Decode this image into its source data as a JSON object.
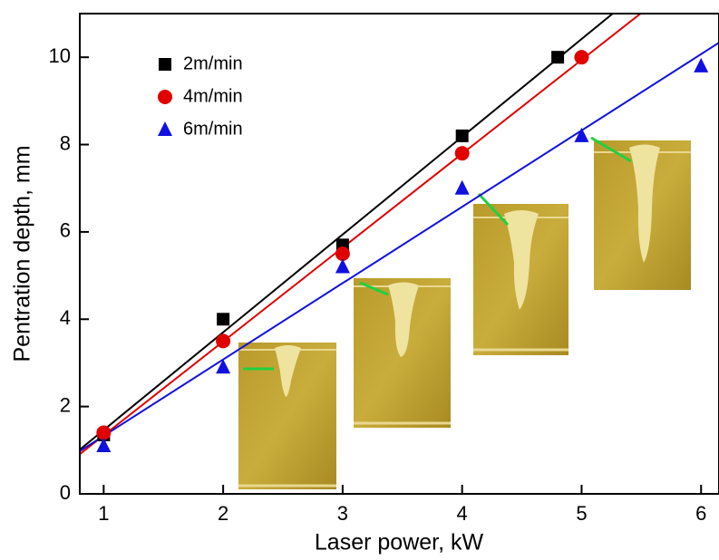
{
  "chart_data": {
    "type": "scatter",
    "x_label": "Laser power, kW",
    "y_label": "Pentration depth, mm",
    "xlim": [
      0.8,
      6.15
    ],
    "ylim": [
      0,
      11
    ],
    "xticks": [
      1,
      2,
      3,
      4,
      5,
      6
    ],
    "yticks": [
      0,
      2,
      4,
      6,
      8,
      10
    ],
    "fit_lines": true,
    "legend": "upper left",
    "series": [
      {
        "name": "2m/min",
        "color": "#000000",
        "marker": "square",
        "x": [
          1,
          2,
          3,
          4,
          4.8
        ],
        "values": [
          1.35,
          4.0,
          5.7,
          8.2,
          10.0
        ]
      },
      {
        "name": "4m/min",
        "color": "#e00000",
        "marker": "circle",
        "x": [
          1,
          2,
          3,
          4,
          5
        ],
        "values": [
          1.4,
          3.5,
          5.5,
          7.8,
          10.0
        ]
      },
      {
        "name": "6m/min",
        "color": "#1010e0",
        "marker": "triangle",
        "x": [
          1,
          2,
          3,
          4,
          5,
          6
        ],
        "values": [
          1.1,
          2.9,
          5.2,
          7.0,
          8.2,
          9.8
        ]
      }
    ]
  }
}
